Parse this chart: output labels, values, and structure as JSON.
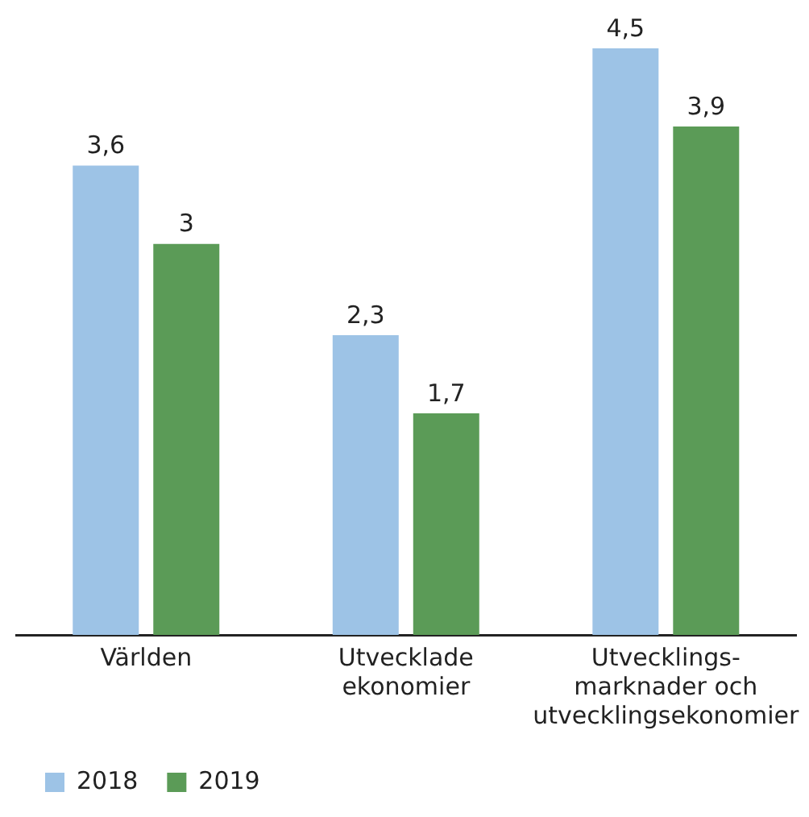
{
  "chart_data": {
    "type": "bar",
    "categories": [
      "Världen",
      "Utvecklade\nekonomier",
      "Utvecklings-\nmarknader och\nutvecklingsekonomier"
    ],
    "series": [
      {
        "name": "2018",
        "color": "#9dc3e6",
        "values": [
          3.6,
          2.3,
          4.5
        ],
        "value_labels": [
          "3,6",
          "2,3",
          "4,5"
        ]
      },
      {
        "name": "2019",
        "color": "#5b9b57",
        "values": [
          3.0,
          1.7,
          3.9
        ],
        "value_labels": [
          "3",
          "1,7",
          "3,9"
        ]
      }
    ],
    "legend": "bottom left",
    "grid": false
  }
}
